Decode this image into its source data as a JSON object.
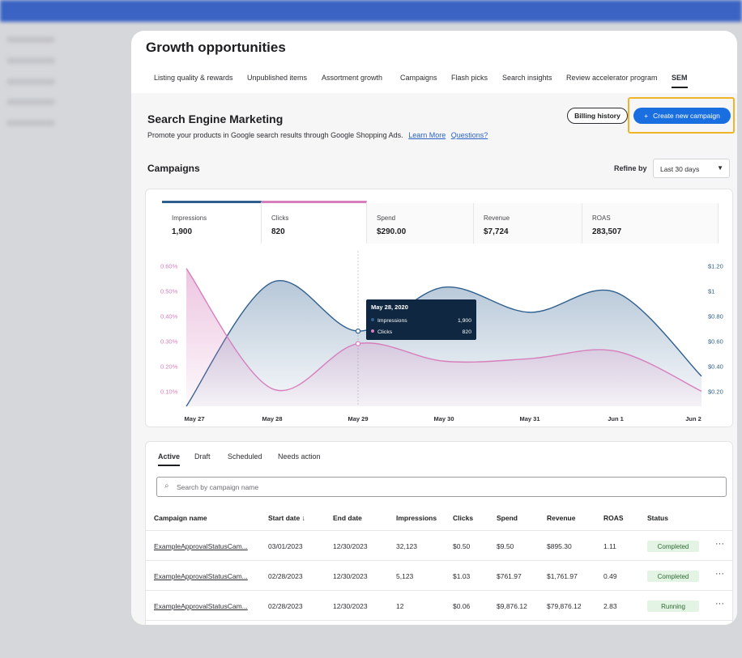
{
  "nav": {
    "title": "Growth opportunities",
    "tabs": [
      "Listing quality & rewards",
      "Unpublished items",
      "Assortment growth",
      "Campaigns",
      "Flash picks",
      "Search insights",
      "Review accelerator program",
      "SEM"
    ]
  },
  "header": {
    "title": "Search Engine Marketing",
    "description": "Promote your products in Google search results through Google Shopping Ads.",
    "links": [
      "Learn More",
      "Questions?"
    ],
    "buttons": [
      "Billing history",
      "Create new campaign"
    ]
  },
  "campaigns": {
    "title": "Campaigns",
    "refine_label": "Refine by",
    "refine_value": "Last 30 days"
  },
  "metrics": [
    {
      "label": "Impressions",
      "value": "1,900"
    },
    {
      "label": "Clicks",
      "value": "820"
    },
    {
      "label": "Spend",
      "value": "$290.00"
    },
    {
      "label": "Revenue",
      "value": "$7,724"
    },
    {
      "label": "ROAS",
      "value": "283,507"
    }
  ],
  "chart_data": {
    "type": "line",
    "categories": [
      "May 27",
      "May 28",
      "May 29",
      "May 30",
      "May 31",
      "Jun 1",
      "Jun 2"
    ],
    "series": [
      {
        "name": "Impressions",
        "color": "#2f5f8f",
        "axis": "y2",
        "values": [
          0.08,
          1.07,
          0.68,
          1.03,
          0.83,
          0.99,
          0.32
        ]
      },
      {
        "name": "Clicks",
        "color": "#d77fbd",
        "values": [
          0.59,
          0.11,
          0.29,
          0.22,
          0.23,
          0.26,
          0.1
        ]
      }
    ],
    "ylim": [
      0.04,
      0.66
    ],
    "yticks": [
      {
        "value": 0.1,
        "label": "0.10%"
      },
      {
        "value": 0.2,
        "label": "0.20%"
      },
      {
        "value": 0.3,
        "label": "0.30%"
      },
      {
        "value": 0.4,
        "label": "0.40%"
      },
      {
        "value": 0.5,
        "label": "0.50%"
      },
      {
        "value": 0.6,
        "label": "0.60%"
      }
    ],
    "y2lim": [
      0.08,
      1.32
    ],
    "y2ticks": [
      {
        "value": 0.2,
        "label": "$0.20"
      },
      {
        "value": 0.4,
        "label": "$0.40"
      },
      {
        "value": 0.6,
        "label": "$0.60"
      },
      {
        "value": 0.8,
        "label": "$0.80"
      },
      {
        "value": 1,
        "label": "$1"
      },
      {
        "value": 1.2,
        "label": "$1.20"
      }
    ],
    "grid": false,
    "tooltip": {
      "title": "May 28, 2020",
      "values": [
        "1,900",
        "820"
      ]
    }
  },
  "table": {
    "tabs": [
      "Active",
      "Draft",
      "Scheduled",
      "Needs action"
    ],
    "search_placeholder": "Search by campaign name",
    "columns": [
      "Campaign name",
      "Start date",
      "End date",
      "Impressions",
      "Clicks",
      "Spend",
      "Revenue",
      "ROAS",
      "Status"
    ],
    "rows": [
      [
        "ExampleApprovalStatusCam...",
        "03/01/2023",
        "12/30/2023",
        "32,123",
        "$0.50",
        "$9.50",
        "$895.30",
        "1.11",
        "Completed"
      ],
      [
        "ExampleApprovalStatusCam...",
        "02/28/2023",
        "12/30/2023",
        "5,123",
        "$1.03",
        "$761.97",
        "$1,761.97",
        "0.49",
        "Completed"
      ],
      [
        "ExampleApprovalStatusCam...",
        "02/28/2023",
        "12/30/2023",
        "12",
        "$0.06",
        "$9,876.12",
        "$79,876.12",
        "2.83",
        "Running"
      ]
    ]
  }
}
